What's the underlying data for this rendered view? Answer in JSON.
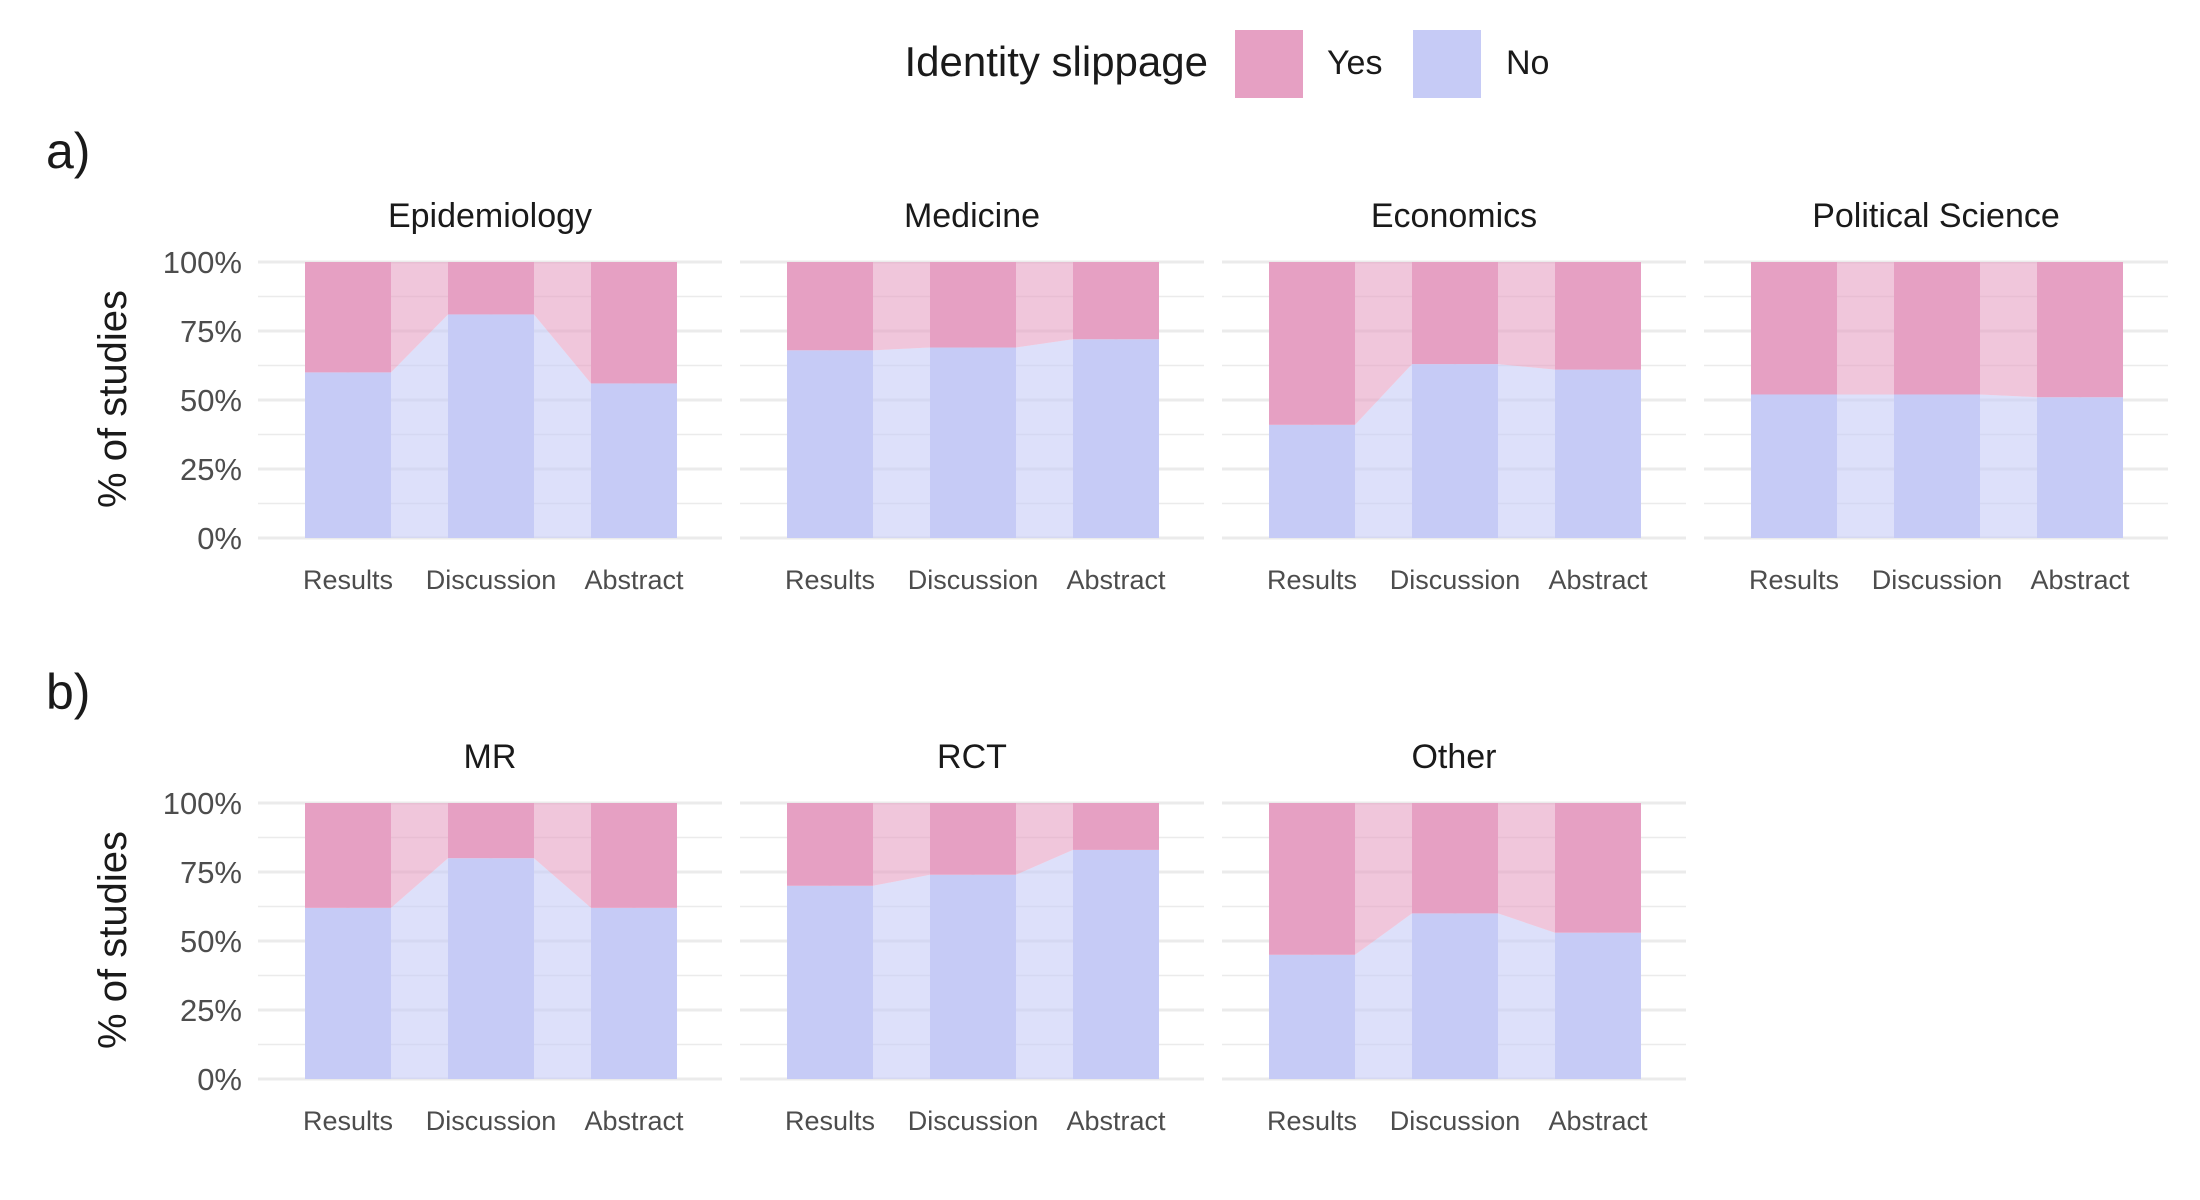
{
  "colors": {
    "yes": "#e6a0c3",
    "no": "#c6cbf6",
    "grid": "#ebebeb",
    "axis_text": "#4d4d4d",
    "text": "#1a1a1a"
  },
  "legend": {
    "title": "Identity slippage",
    "items": [
      {
        "label": "Yes",
        "color": "#e6a0c3"
      },
      {
        "label": "No",
        "color": "#c6cbf6"
      }
    ]
  },
  "chart_data": [
    {
      "tag": "a)",
      "type": "bar",
      "stacked": true,
      "connected": true,
      "ylabel": "% of studies",
      "yticks": [
        "0%",
        "25%",
        "50%",
        "75%",
        "100%"
      ],
      "ylim": [
        0,
        100
      ],
      "categories": [
        "Results",
        "Discussion",
        "Abstract"
      ],
      "panels": [
        {
          "title": "Epidemiology",
          "no": [
            60,
            81,
            56
          ],
          "yes": [
            40,
            19,
            44
          ]
        },
        {
          "title": "Medicine",
          "no": [
            68,
            69,
            72
          ],
          "yes": [
            32,
            31,
            28
          ]
        },
        {
          "title": "Economics",
          "no": [
            41,
            63,
            61
          ],
          "yes": [
            59,
            37,
            39
          ]
        },
        {
          "title": "Political Science",
          "no": [
            52,
            52,
            51
          ],
          "yes": [
            48,
            48,
            49
          ]
        }
      ]
    },
    {
      "tag": "b)",
      "type": "bar",
      "stacked": true,
      "connected": true,
      "ylabel": "% of studies",
      "yticks": [
        "0%",
        "25%",
        "50%",
        "75%",
        "100%"
      ],
      "ylim": [
        0,
        100
      ],
      "categories": [
        "Results",
        "Discussion",
        "Abstract"
      ],
      "panels": [
        {
          "title": "MR",
          "no": [
            62,
            80,
            62
          ],
          "yes": [
            38,
            20,
            38
          ]
        },
        {
          "title": "RCT",
          "no": [
            70,
            74,
            83
          ],
          "yes": [
            30,
            26,
            17
          ]
        },
        {
          "title": "Other",
          "no": [
            45,
            60,
            53
          ],
          "yes": [
            55,
            40,
            47
          ]
        }
      ]
    }
  ]
}
